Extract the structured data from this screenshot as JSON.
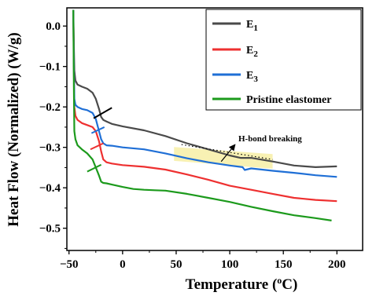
{
  "chart_data": {
    "type": "line",
    "xlabel": "Temperature (",
    "xlabel_sup": "o",
    "xlabel_suffix": "C)",
    "ylabel": "Heat Flow (Normalized) (W/g)",
    "xlim": [
      -52,
      224
    ],
    "ylim": [
      -0.555,
      0.045
    ],
    "xticks": [
      -50,
      0,
      50,
      100,
      150,
      200
    ],
    "xtick_labels": [
      "−50",
      "0",
      "50",
      "100",
      "150",
      "200"
    ],
    "yticks": [
      0.0,
      -0.1,
      -0.2,
      -0.3,
      -0.4,
      -0.5
    ],
    "ytick_labels": [
      "0.0",
      "−0.1",
      "−0.2",
      "−0.3",
      "−0.4",
      "−0.5"
    ],
    "grid": false,
    "legend_position": "top-right",
    "series": [
      {
        "name": "E1",
        "name_base": "E",
        "name_sub": "1",
        "color": "#4a4a4a",
        "x": [
          -46,
          -45.5,
          -45,
          -44,
          -42,
          -38,
          -33,
          -28,
          -25,
          -22,
          -20,
          -18,
          -15,
          -10,
          0,
          20,
          40,
          60,
          80,
          100,
          110,
          120,
          140,
          160,
          180,
          200
        ],
        "y": [
          0.04,
          -0.05,
          -0.11,
          -0.135,
          -0.145,
          -0.15,
          -0.155,
          -0.165,
          -0.18,
          -0.205,
          -0.225,
          -0.232,
          -0.236,
          -0.242,
          -0.248,
          -0.258,
          -0.272,
          -0.29,
          -0.305,
          -0.32,
          -0.326,
          -0.326,
          -0.335,
          -0.345,
          -0.349,
          -0.347
        ]
      },
      {
        "name": "E2",
        "name_base": "E",
        "name_sub": "2",
        "color": "#ee3030",
        "x": [
          -46,
          -45.5,
          -45,
          -44,
          -42,
          -38,
          -33,
          -28,
          -25,
          -22,
          -20,
          -18,
          -15,
          -10,
          0,
          20,
          40,
          60,
          80,
          100,
          120,
          140,
          160,
          180,
          200
        ],
        "y": [
          0.04,
          -0.1,
          -0.2,
          -0.222,
          -0.232,
          -0.24,
          -0.245,
          -0.25,
          -0.26,
          -0.285,
          -0.31,
          -0.33,
          -0.337,
          -0.34,
          -0.344,
          -0.348,
          -0.355,
          -0.367,
          -0.38,
          -0.395,
          -0.405,
          -0.415,
          -0.425,
          -0.43,
          -0.433
        ]
      },
      {
        "name": "E3",
        "name_base": "E",
        "name_sub": "3",
        "color": "#1f6fd6",
        "x": [
          -46,
          -45.5,
          -45,
          -44,
          -42,
          -38,
          -33,
          -28,
          -25,
          -22,
          -20,
          -18,
          -15,
          -10,
          0,
          20,
          40,
          60,
          80,
          100,
          112,
          114,
          120,
          140,
          160,
          180,
          200
        ],
        "y": [
          0.04,
          -0.1,
          -0.18,
          -0.195,
          -0.2,
          -0.205,
          -0.208,
          -0.215,
          -0.23,
          -0.26,
          -0.28,
          -0.29,
          -0.295,
          -0.296,
          -0.3,
          -0.305,
          -0.315,
          -0.327,
          -0.337,
          -0.345,
          -0.349,
          -0.356,
          -0.352,
          -0.358,
          -0.363,
          -0.369,
          -0.373
        ]
      },
      {
        "name": "Pristine elastomer",
        "color": "#1c9a1c",
        "x": [
          -46,
          -45.5,
          -45,
          -44,
          -42,
          -38,
          -33,
          -28,
          -25,
          -22,
          -20,
          -18,
          -15,
          -10,
          0,
          10,
          20,
          30,
          40,
          60,
          80,
          100,
          120,
          140,
          160,
          180,
          195
        ],
        "y": [
          0.04,
          -0.15,
          -0.26,
          -0.28,
          -0.295,
          -0.305,
          -0.315,
          -0.33,
          -0.35,
          -0.37,
          -0.385,
          -0.388,
          -0.389,
          -0.392,
          -0.398,
          -0.403,
          -0.405,
          -0.406,
          -0.407,
          -0.415,
          -0.425,
          -0.435,
          -0.447,
          -0.458,
          -0.468,
          -0.475,
          -0.481
        ]
      }
    ],
    "tangent_marks": [
      {
        "color": "#000000",
        "x": [
          -27,
          -10
        ],
        "y": [
          -0.228,
          -0.202
        ]
      },
      {
        "color": "#ee3030",
        "x": [
          -30,
          -18
        ],
        "y": [
          -0.305,
          -0.29
        ]
      },
      {
        "color": "#1f6fd6",
        "x": [
          -29,
          -17
        ],
        "y": [
          -0.265,
          -0.25
        ]
      },
      {
        "color": "#1c9a1c",
        "x": [
          -33,
          -20
        ],
        "y": [
          -0.36,
          -0.343
        ]
      }
    ],
    "annotations": [
      {
        "text": "H-bond breaking",
        "text_pos": [
          108,
          -0.285
        ],
        "arrow_from": [
          92,
          -0.335
        ],
        "arrow_to": [
          105,
          -0.293
        ],
        "highlight_x": [
          48,
          140
        ],
        "highlight_y": [
          -0.305,
          -0.345
        ],
        "highlight_color": "#f5ec9a",
        "dotted_line": {
          "x": [
            55,
            140
          ],
          "y": [
            -0.293,
            -0.33
          ]
        }
      }
    ]
  }
}
